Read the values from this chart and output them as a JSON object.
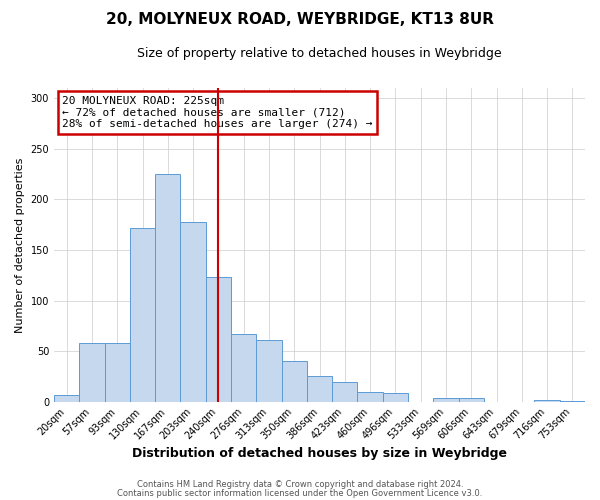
{
  "title1": "20, MOLYNEUX ROAD, WEYBRIDGE, KT13 8UR",
  "title2": "Size of property relative to detached houses in Weybridge",
  "xlabel": "Distribution of detached houses by size in Weybridge",
  "ylabel": "Number of detached properties",
  "bin_labels": [
    "20sqm",
    "57sqm",
    "93sqm",
    "130sqm",
    "167sqm",
    "203sqm",
    "240sqm",
    "276sqm",
    "313sqm",
    "350sqm",
    "386sqm",
    "423sqm",
    "460sqm",
    "496sqm",
    "533sqm",
    "569sqm",
    "606sqm",
    "643sqm",
    "679sqm",
    "716sqm",
    "753sqm"
  ],
  "bin_values": [
    7,
    58,
    58,
    172,
    225,
    178,
    123,
    67,
    61,
    40,
    25,
    19,
    10,
    9,
    0,
    4,
    4,
    0,
    0,
    2,
    1
  ],
  "bar_color": "#c5d8ee",
  "bar_edge_color": "#5b9bd5",
  "vline_index": 6,
  "annotation_line1": "20 MOLYNEUX ROAD: 225sqm",
  "annotation_line2": "← 72% of detached houses are smaller (712)",
  "annotation_line3": "28% of semi-detached houses are larger (274) →",
  "vline_color": "#cc0000",
  "annotation_box_color": "#cc0000",
  "footer1": "Contains HM Land Registry data © Crown copyright and database right 2024.",
  "footer2": "Contains public sector information licensed under the Open Government Licence v3.0.",
  "ylim": [
    0,
    310
  ],
  "yticks": [
    0,
    50,
    100,
    150,
    200,
    250,
    300
  ],
  "background_color": "#ffffff",
  "grid_color": "#cccccc",
  "title1_fontsize": 11,
  "title2_fontsize": 9,
  "xlabel_fontsize": 9,
  "ylabel_fontsize": 8,
  "tick_fontsize": 7,
  "annotation_fontsize": 8,
  "footer_fontsize": 6
}
